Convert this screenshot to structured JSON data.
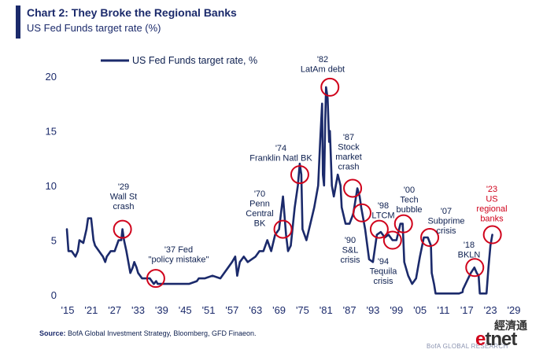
{
  "header": {
    "title": "Chart 2: They Broke the Regional Banks",
    "subtitle": "US Fed Funds target rate (%)"
  },
  "source": {
    "label": "Source:",
    "text": "BofA Global Investment Strategy, Bloomberg, GFD Finaeon."
  },
  "footer": {
    "credit": "BofA GLOBAL RESEARCH"
  },
  "watermark": {
    "chinese": "經濟通",
    "latin_e": "e",
    "latin_rest": "tnet"
  },
  "colors": {
    "line": "#1b2a6b",
    "highlight": "#d0021b",
    "text": "#0d1f4f"
  },
  "chart_data": {
    "type": "line",
    "title": "Chart 2: They Broke the Regional Banks",
    "subtitle": "US Fed Funds target rate (%)",
    "legend": {
      "label": "US Fed Funds target rate, %",
      "placement": "top-left"
    },
    "xlim": [
      1915,
      2029
    ],
    "ylim": [
      0,
      20
    ],
    "x_ticks": [
      "'15",
      "'21",
      "'27",
      "'33",
      "'39",
      "'45",
      "'51",
      "'57",
      "'63",
      "'69",
      "'75",
      "'81",
      "'87",
      "'93",
      "'99",
      "'05",
      "'11",
      "'17",
      "'23",
      "'29"
    ],
    "x_tick_values": [
      1915,
      1921,
      1927,
      1933,
      1939,
      1945,
      1951,
      1957,
      1963,
      1969,
      1975,
      1981,
      1987,
      1993,
      1999,
      2005,
      2011,
      2017,
      2023,
      2029
    ],
    "y_ticks": [
      "0",
      "5",
      "10",
      "15",
      "20"
    ],
    "y_tick_values": [
      0,
      5,
      10,
      15,
      20
    ],
    "grid": false,
    "series": [
      {
        "name": "US Fed Funds target rate, %",
        "x": [
          1914.8,
          1915.2,
          1916,
          1917,
          1917.6,
          1918,
          1919,
          1919.8,
          1920.2,
          1921,
          1921.6,
          1922,
          1923,
          1924,
          1924.6,
          1925,
          1926,
          1927,
          1928,
          1928.7,
          1929,
          1929.4,
          1930,
          1930.5,
          1931,
          1931.6,
          1932,
          1932.6,
          1933,
          1934,
          1935,
          1936,
          1937,
          1937.6,
          1938,
          1940,
          1942,
          1944,
          1946,
          1948,
          1948.5,
          1950,
          1952,
          1954,
          1955,
          1956,
          1957,
          1957.8,
          1958.3,
          1959,
          1960,
          1961,
          1963,
          1964,
          1965,
          1966,
          1967,
          1968,
          1969,
          1970,
          1970.8,
          1971.3,
          1972,
          1973,
          1973.8,
          1974.3,
          1974.7,
          1975,
          1976,
          1977,
          1978,
          1979,
          1979.5,
          1980,
          1980.2,
          1980.5,
          1980.8,
          1981,
          1981.4,
          1981.8,
          1982,
          1982.5,
          1983,
          1984,
          1984.7,
          1985,
          1986,
          1987,
          1987.8,
          1988,
          1989,
          1989.6,
          1990,
          1991,
          1992,
          1993,
          1994,
          1995,
          1996,
          1997,
          1998,
          1999,
          2000,
          2000.6,
          2001,
          2002,
          2003,
          2004,
          2005,
          2006,
          2007,
          2007.8,
          2008,
          2008.6,
          2009,
          2012,
          2015,
          2015.9,
          2016,
          2017,
          2018,
          2018.9,
          2019.5,
          2020,
          2020.3,
          2021,
          2022,
          2022.5,
          2023,
          2023.5
        ],
        "values": [
          6.0,
          4.0,
          4.0,
          3.5,
          4.0,
          5.0,
          4.75,
          6.0,
          7.0,
          7.0,
          5.0,
          4.5,
          4.0,
          3.5,
          3.0,
          3.5,
          4.0,
          4.0,
          5.0,
          5.0,
          6.0,
          5.0,
          4.0,
          3.0,
          2.0,
          2.5,
          3.0,
          2.5,
          2.0,
          1.5,
          1.5,
          1.5,
          1.0,
          1.25,
          1.0,
          1.0,
          1.0,
          1.0,
          1.0,
          1.25,
          1.5,
          1.5,
          1.75,
          1.5,
          2.0,
          2.5,
          3.0,
          3.5,
          1.75,
          3.0,
          3.5,
          3.0,
          3.5,
          4.0,
          4.0,
          5.0,
          4.0,
          5.5,
          6.0,
          9.0,
          5.5,
          4.0,
          4.5,
          8.0,
          10.0,
          12.0,
          11.0,
          6.0,
          5.0,
          6.5,
          8.0,
          10.0,
          14.0,
          17.5,
          11.0,
          10.0,
          16.0,
          19.0,
          18.0,
          14.0,
          15.0,
          10.0,
          9.0,
          11.0,
          10.0,
          8.0,
          6.5,
          6.5,
          7.25,
          7.5,
          9.75,
          9.0,
          8.0,
          6.0,
          3.25,
          3.0,
          5.5,
          5.75,
          5.25,
          5.5,
          5.0,
          5.0,
          6.5,
          6.5,
          3.0,
          1.75,
          1.0,
          1.5,
          3.5,
          5.25,
          5.25,
          4.5,
          2.0,
          1.0,
          0.125,
          0.125,
          0.125,
          0.25,
          0.5,
          1.25,
          2.0,
          2.5,
          2.0,
          1.75,
          0.125,
          0.125,
          0.125,
          2.5,
          4.5,
          5.5
        ]
      }
    ],
    "annotations": [
      {
        "lines": [
          "'29",
          "Wall St",
          "crash"
        ],
        "x": 1929,
        "y": 6.0,
        "color": "text",
        "circle": true
      },
      {
        "lines": [
          "'37 Fed",
          "\"policy mistake\""
        ],
        "x": 1937.5,
        "y": 1.5,
        "color": "text",
        "circle": true
      },
      {
        "lines": [
          "'70",
          "Penn",
          "Central",
          "BK"
        ],
        "x": 1970,
        "y": 6.0,
        "color": "text",
        "circle": true
      },
      {
        "lines": [
          "'74",
          "Franklin Natl BK"
        ],
        "x": 1974.3,
        "y": 11.0,
        "color": "text",
        "circle": true
      },
      {
        "lines": [
          "'82",
          "LatAm debt"
        ],
        "x": 1982,
        "y": 19.0,
        "color": "text",
        "circle": true
      },
      {
        "lines": [
          "'87",
          "Stock",
          "market",
          "crash"
        ],
        "x": 1987.8,
        "y": 9.75,
        "color": "text",
        "circle": true
      },
      {
        "lines": [
          "'90",
          "S&L",
          "crisis"
        ],
        "x": 1990.2,
        "y": 7.5,
        "color": "text",
        "circle": true
      },
      {
        "lines": [
          "'94",
          "Tequila",
          "crisis"
        ],
        "x": 1994.6,
        "y": 6.0,
        "color": "text",
        "circle": true
      },
      {
        "lines": [
          "'98",
          "LTCM"
        ],
        "x": 1998,
        "y": 5.0,
        "color": "text",
        "circle": true
      },
      {
        "lines": [
          "'00",
          "Tech",
          "bubble"
        ],
        "x": 2000.8,
        "y": 6.5,
        "color": "text",
        "circle": true
      },
      {
        "lines": [
          "'07",
          "Subprime",
          "crisis"
        ],
        "x": 2007.5,
        "y": 5.25,
        "color": "text",
        "circle": true
      },
      {
        "lines": [
          "'18",
          "BKLN"
        ],
        "x": 2019,
        "y": 2.5,
        "color": "text",
        "circle": true
      },
      {
        "lines": [
          "'23",
          "US",
          "regional",
          "banks"
        ],
        "x": 2023.5,
        "y": 5.5,
        "color": "highlight",
        "circle": true
      }
    ]
  }
}
